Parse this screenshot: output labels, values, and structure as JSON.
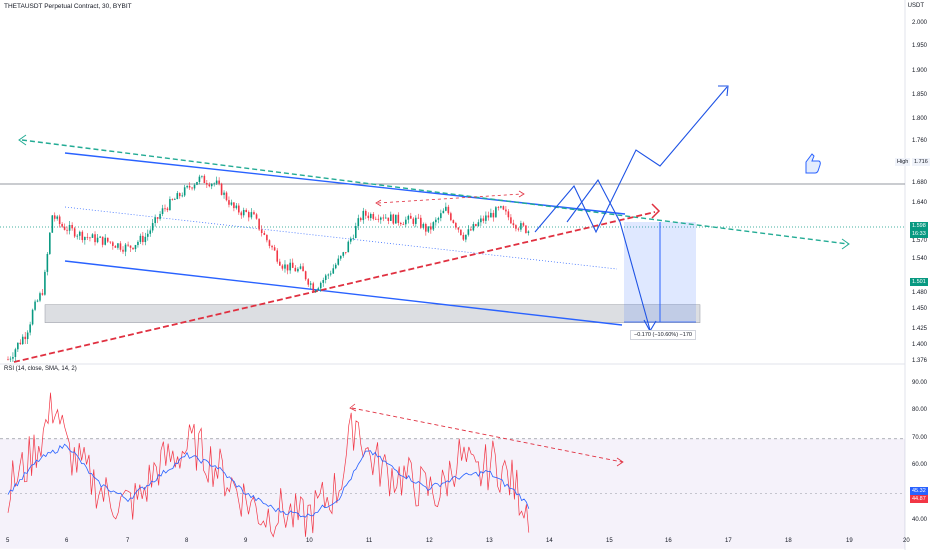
{
  "header": {
    "title": "THETAUSDT Perpetual Contract, 30, BYBIT",
    "unit": "USDT",
    "rsi_title": "RSI (14, close, SMA, 14, 2)"
  },
  "price_axis": {
    "ticks": [
      "2.000",
      "1.950",
      "1.900",
      "1.850",
      "1.800",
      "1.760",
      "1.680",
      "1.640",
      "1.570",
      "1.540",
      "1.480",
      "1.450",
      "1.425",
      "1.400",
      "1.376"
    ]
  },
  "rsi_axis": {
    "ticks": [
      "90.00",
      "80.00",
      "70.00",
      "60.00",
      "50.00",
      "40.00"
    ]
  },
  "time_axis": {
    "labels": [
      "5",
      "6",
      "7",
      "8",
      "9",
      "10",
      "11",
      "12",
      "13",
      "14",
      "15",
      "16",
      "17",
      "18",
      "19",
      "20"
    ]
  },
  "badges": {
    "high_label": "High",
    "high_value": "1.716",
    "last_price": "1.598",
    "last_sub": "16:33",
    "low_price": "1.501",
    "rsi_value_1": "45.32",
    "rsi_value_2": "44.87"
  },
  "measurement": {
    "label": "−0.170 (−10.60%) −170"
  },
  "colors": {
    "up": "#089981",
    "down": "#f23645",
    "trendline_blue": "#2962ff",
    "projection_blue": "#1e53e5",
    "dashed_green": "#22ab94",
    "dashed_red": "#e03040",
    "rsi_line": "#f23645",
    "rsi_ma": "#2962ff",
    "rsi_band": "#7e57c2"
  },
  "chart_data": [
    {
      "type": "candlestick",
      "title": "THETAUSDT Perpetual Contract, 30, BYBIT",
      "ylabel": "USDT",
      "x_range": [
        5,
        20
      ],
      "ylim": [
        1.376,
        2.0
      ],
      "scale": "log",
      "approx_close_path": [
        [
          5.0,
          1.38
        ],
        [
          5.3,
          1.42
        ],
        [
          5.6,
          1.49
        ],
        [
          5.75,
          1.62
        ],
        [
          5.9,
          1.6
        ],
        [
          6.3,
          1.58
        ],
        [
          6.7,
          1.57
        ],
        [
          7.0,
          1.56
        ],
        [
          7.3,
          1.58
        ],
        [
          7.6,
          1.63
        ],
        [
          7.9,
          1.66
        ],
        [
          8.2,
          1.69
        ],
        [
          8.5,
          1.68
        ],
        [
          8.8,
          1.63
        ],
        [
          9.1,
          1.62
        ],
        [
          9.3,
          1.58
        ],
        [
          9.6,
          1.53
        ],
        [
          9.9,
          1.52
        ],
        [
          10.1,
          1.49
        ],
        [
          10.3,
          1.51
        ],
        [
          10.6,
          1.55
        ],
        [
          10.9,
          1.62
        ],
        [
          11.2,
          1.62
        ],
        [
          11.5,
          1.61
        ],
        [
          11.8,
          1.61
        ],
        [
          12.0,
          1.59
        ],
        [
          12.3,
          1.63
        ],
        [
          12.6,
          1.58
        ],
        [
          12.9,
          1.61
        ],
        [
          13.2,
          1.63
        ],
        [
          13.5,
          1.6
        ],
        [
          13.7,
          1.59
        ]
      ],
      "annotations": {
        "high_level": 1.716,
        "last_price": 1.598,
        "measured_move": "−0.170 (−10.60%) −170",
        "support_zone": [
          1.455,
          1.475
        ]
      }
    },
    {
      "type": "line",
      "title": "RSI (14, close, SMA, 14, 2)",
      "x_range": [
        5,
        20
      ],
      "ylim": [
        35,
        95
      ],
      "bands": [
        30,
        70
      ],
      "series": [
        {
          "values_x": [
            5.0,
            5.3,
            5.6,
            5.8,
            6.0,
            6.3,
            6.6,
            6.9,
            7.2,
            7.5,
            7.8,
            8.1,
            8.4,
            8.7,
            9.0,
            9.3,
            9.6,
            9.9,
            10.2,
            10.5,
            10.8,
            11.0,
            11.3,
            11.6,
            11.9,
            12.2,
            12.5,
            12.8,
            13.1,
            13.4,
            13.7
          ],
          "values_y": [
            52,
            60,
            72,
            84,
            66,
            58,
            50,
            46,
            48,
            60,
            64,
            68,
            62,
            55,
            48,
            42,
            44,
            40,
            46,
            52,
            78,
            64,
            58,
            56,
            52,
            50,
            64,
            56,
            62,
            54,
            44
          ]
        },
        {
          "values_x": [
            5.0,
            5.5,
            6.0,
            6.5,
            7.0,
            7.5,
            8.0,
            8.5,
            9.0,
            9.5,
            10.0,
            10.5,
            11.0,
            11.5,
            12.0,
            12.5,
            13.0,
            13.5,
            13.7
          ],
          "values_y": [
            50,
            62,
            68,
            54,
            48,
            56,
            64,
            60,
            50,
            44,
            42,
            48,
            66,
            58,
            52,
            56,
            58,
            50,
            45
          ]
        }
      ],
      "last_values": [
        "45.32",
        "44.87"
      ]
    }
  ]
}
